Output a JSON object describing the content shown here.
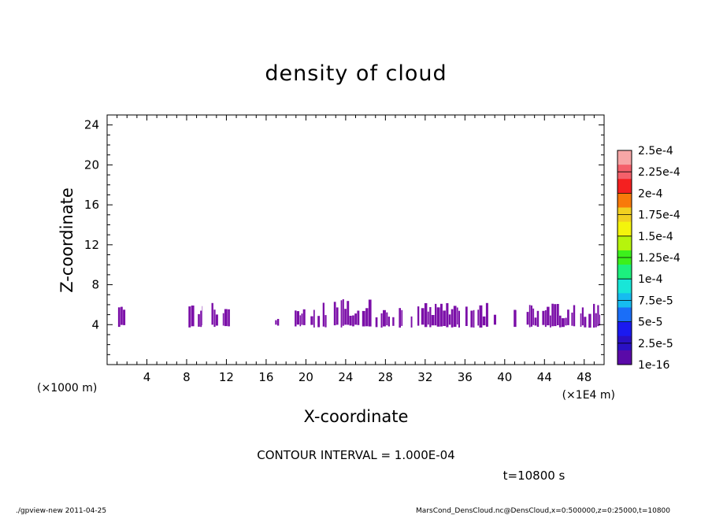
{
  "chart_data": {
    "type": "heatmap",
    "title": "density of cloud",
    "xlabel": "X-coordinate",
    "ylabel": "Z-coordinate",
    "x_multiplier": "(×1E4 m)",
    "y_multiplier": "(×1000 m)",
    "xlim": [
      0,
      50
    ],
    "ylim": [
      0,
      25
    ],
    "x_ticks": [
      4,
      8,
      12,
      16,
      20,
      24,
      28,
      32,
      36,
      40,
      44,
      48
    ],
    "y_ticks": [
      4,
      8,
      12,
      16,
      20,
      24
    ],
    "x_tick_labels": [
      "4",
      "8",
      "12",
      "16",
      "20",
      "24",
      "28",
      "32",
      "36",
      "40",
      "44",
      "48"
    ],
    "y_tick_labels": [
      "4",
      "8",
      "12",
      "16",
      "20",
      "24"
    ],
    "cloud_color": "#7b0fa8",
    "cloud_patches": [
      {
        "x": [
          1.1,
          2.2
        ],
        "top": 5.9
      },
      {
        "x": [
          7.9,
          9.6
        ],
        "top": 6.1
      },
      {
        "x": [
          10.5,
          12.8
        ],
        "top": 6.3
      },
      {
        "x": [
          16.9,
          17.3
        ],
        "top": 5.4
      },
      {
        "x": [
          18.6,
          20.9
        ],
        "top": 5.7
      },
      {
        "x": [
          21.0,
          23.3
        ],
        "top": 6.3
      },
      {
        "x": [
          23.5,
          26.6
        ],
        "top": 6.6
      },
      {
        "x": [
          27.0,
          28.6
        ],
        "top": 5.5
      },
      {
        "x": [
          28.7,
          31.4
        ],
        "top": 6.2
      },
      {
        "x": [
          31.6,
          35.5
        ],
        "top": 6.3
      },
      {
        "x": [
          35.8,
          38.4
        ],
        "top": 6.2
      },
      {
        "x": [
          38.9,
          39.3
        ],
        "top": 5.3
      },
      {
        "x": [
          40.9,
          41.2
        ],
        "top": 5.5
      },
      {
        "x": [
          42.2,
          46.5
        ],
        "top": 6.1
      },
      {
        "x": [
          46.7,
          49.6
        ],
        "top": 6.1
      }
    ],
    "cloud_bottom": 3.7,
    "colorbar": {
      "labels": [
        "2.5e-4",
        "2.25e-4",
        "2e-4",
        "1.75e-4",
        "1.5e-4",
        "1.25e-4",
        "1e-4",
        "7.5e-5",
        "5e-5",
        "2.5e-5",
        "1e-16"
      ],
      "colors_top_to_bottom": [
        "#f7a6a6",
        "#f4606a",
        "#f42020",
        "#f87a0a",
        "#f2d020",
        "#f4f40c",
        "#b6f40c",
        "#3cf01c",
        "#1cf07e",
        "#18e6d8",
        "#16bcf0",
        "#1a6ef8",
        "#1a1af0",
        "#2a10c4",
        "#5a0aa8"
      ]
    },
    "contour_interval": "CONTOUR INTERVAL = 1.000E-04",
    "time_label": "t=10800  s"
  },
  "footer": {
    "left": "./gpview-new   2011-04-25",
    "right": "MarsCond_DensCloud.nc@DensCloud,x=0:500000,z=0:25000,t=10800"
  }
}
